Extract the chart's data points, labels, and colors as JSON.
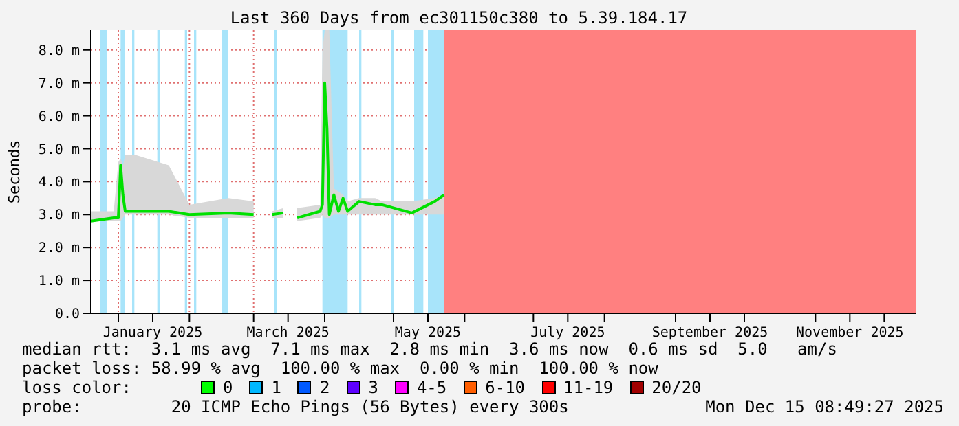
{
  "chart_data": {
    "type": "line",
    "title": "Last 360 Days from ec301150c380 to 5.39.184.17",
    "ylabel": "Seconds",
    "xlim": [
      "2024-12-20",
      "2025-12-15"
    ],
    "xticks": [
      {
        "value": "2025-01-01",
        "label": null
      },
      {
        "value": "2025-01-16",
        "label": "January 2025"
      },
      {
        "value": "2025-02-01",
        "label": null
      },
      {
        "value": "2025-03-01",
        "label": null
      },
      {
        "value": "2025-03-16",
        "label": "March 2025"
      },
      {
        "value": "2025-04-01",
        "label": null
      },
      {
        "value": "2025-05-01",
        "label": null
      },
      {
        "value": "2025-05-16",
        "label": "May 2025"
      },
      {
        "value": "2025-06-01",
        "label": null
      },
      {
        "value": "2025-07-01",
        "label": null
      },
      {
        "value": "2025-07-16",
        "label": "July 2025"
      },
      {
        "value": "2025-08-01",
        "label": null
      },
      {
        "value": "2025-09-01",
        "label": null
      },
      {
        "value": "2025-09-16",
        "label": "September 2025"
      },
      {
        "value": "2025-10-01",
        "label": null
      },
      {
        "value": "2025-11-01",
        "label": null
      },
      {
        "value": "2025-11-16",
        "label": "November 2025"
      },
      {
        "value": "2025-12-01",
        "label": null
      }
    ],
    "ylim": [
      0,
      8.6
    ],
    "yticks": [
      {
        "value": 0,
        "label": "0.0"
      },
      {
        "value": 1,
        "label": "1.0 m"
      },
      {
        "value": 2,
        "label": "2.0 m"
      },
      {
        "value": 3,
        "label": "3.0 m"
      },
      {
        "value": 4,
        "label": "4.0 m"
      },
      {
        "value": 5,
        "label": "5.0 m"
      },
      {
        "value": 6,
        "label": "6.0 m"
      },
      {
        "value": 7,
        "label": "7.0 m"
      },
      {
        "value": 8,
        "label": "8.0 m"
      }
    ],
    "grid": true,
    "x": [
      "2024-12-20",
      "2024-12-30",
      "2025-01-01",
      "2025-01-02",
      "2025-01-03",
      "2025-01-04",
      "2025-01-09",
      "2025-01-23",
      "2025-02-01",
      "2025-02-18",
      "2025-03-01",
      "2025-03-05",
      "2025-03-09",
      "2025-03-14",
      "2025-03-17",
      "2025-03-20",
      "2025-03-30",
      "2025-03-31",
      "2025-04-01",
      "2025-04-02",
      "2025-04-03",
      "2025-04-05",
      "2025-04-07",
      "2025-04-09",
      "2025-04-11",
      "2025-04-16",
      "2025-04-23",
      "2025-04-26",
      "2025-05-09",
      "2025-05-19",
      "2025-05-23"
    ],
    "series": [
      {
        "color": "#00e000",
        "values": [
          2.8,
          2.9,
          2.9,
          4.5,
          3.6,
          3.1,
          3.1,
          3.1,
          3.0,
          3.05,
          3.0,
          null,
          3.0,
          3.05,
          null,
          2.9,
          3.1,
          3.3,
          7.0,
          5.6,
          3.0,
          3.6,
          3.1,
          3.5,
          3.1,
          3.4,
          3.3,
          3.3,
          3.05,
          3.4,
          3.6
        ],
        "lower": [
          2.8,
          2.8,
          2.8,
          2.8,
          2.9,
          3.0,
          3.0,
          3.0,
          2.9,
          2.9,
          2.9,
          null,
          2.9,
          2.9,
          null,
          2.8,
          2.9,
          3.0,
          2.9,
          2.9,
          2.9,
          3.0,
          3.0,
          3.0,
          3.0,
          3.0,
          3.0,
          3.0,
          3.0,
          3.0,
          3.0
        ],
        "upper": [
          3.1,
          3.1,
          4.6,
          4.7,
          4.5,
          4.8,
          4.8,
          4.5,
          3.3,
          3.5,
          3.4,
          null,
          3.1,
          3.2,
          null,
          3.2,
          3.3,
          8.0,
          8.6,
          8.6,
          8.6,
          3.8,
          3.7,
          3.6,
          3.4,
          3.5,
          3.5,
          3.4,
          3.4,
          3.5,
          3.6
        ]
      }
    ],
    "bands": [
      {
        "axis": "x",
        "from": "2024-12-24",
        "to": "2024-12-27",
        "color": "#a8e4fa"
      },
      {
        "axis": "x",
        "from": "2025-01-02",
        "to": "2025-01-04",
        "color": "#a8e4fa"
      },
      {
        "axis": "x",
        "from": "2025-01-07",
        "to": "2025-01-08",
        "color": "#a8e4fa"
      },
      {
        "axis": "x",
        "from": "2025-01-18",
        "to": "2025-01-19",
        "color": "#a8e4fa"
      },
      {
        "axis": "x",
        "from": "2025-01-30",
        "to": "2025-01-31",
        "color": "#a8e4fa"
      },
      {
        "axis": "x",
        "from": "2025-02-03",
        "to": "2025-02-04",
        "color": "#a8e4fa"
      },
      {
        "axis": "x",
        "from": "2025-02-15",
        "to": "2025-02-18",
        "color": "#a8e4fa"
      },
      {
        "axis": "x",
        "from": "2025-03-10",
        "to": "2025-03-11",
        "color": "#a8e4fa"
      },
      {
        "axis": "x",
        "from": "2025-03-31",
        "to": "2025-04-11",
        "color": "#a8e4fa"
      },
      {
        "axis": "x",
        "from": "2025-04-16",
        "to": "2025-04-17",
        "color": "#a8e4fa"
      },
      {
        "axis": "x",
        "from": "2025-04-30",
        "to": "2025-05-01",
        "color": "#a8e4fa"
      },
      {
        "axis": "x",
        "from": "2025-05-10",
        "to": "2025-05-14",
        "color": "#a8e4fa"
      },
      {
        "axis": "x",
        "from": "2025-05-16",
        "to": "2025-05-23",
        "color": "#a8e4fa"
      },
      {
        "axis": "x",
        "from": "2025-05-23",
        "to": "2025-12-15",
        "color": "#ff8080"
      }
    ],
    "annotations": [
      "median rtt:  3.1 ms avg  7.1 ms max  2.8 ms min  3.6 ms now  0.6 ms sd  5.0   am/s",
      "packet loss: 58.99 % avg  100.00 % max  0.00 % min  100.00 % now",
      "loss color:",
      "0",
      "1",
      "2",
      "3",
      "4-5",
      "6-10",
      "11-19",
      "20/20",
      "probe:         20 ICMP Echo Pings (56 Bytes) every 300s",
      "Mon Dec 15 08:49:27 2025"
    ]
  }
}
